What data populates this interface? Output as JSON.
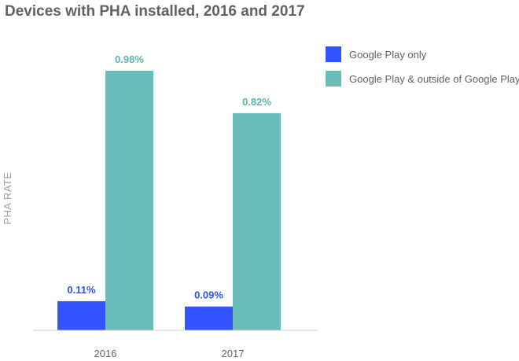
{
  "chart_data": {
    "type": "bar",
    "title": "Devices with PHA installed, 2016 and 2017",
    "xlabel": "",
    "ylabel": "PHA RATE",
    "categories": [
      "2016",
      "2017"
    ],
    "series": [
      {
        "name": "Google Play only",
        "color": "#3355ff",
        "values": [
          0.11,
          0.09
        ],
        "labels": [
          "0.11%",
          "0.09%"
        ]
      },
      {
        "name": "Google Play & outside of Google Play",
        "color": "#6bbdb9",
        "values": [
          0.98,
          0.82
        ],
        "labels": [
          "0.98%",
          "0.82%"
        ]
      }
    ],
    "ylim": [
      0,
      1.1
    ],
    "grid": false,
    "legend_position": "top-right"
  }
}
